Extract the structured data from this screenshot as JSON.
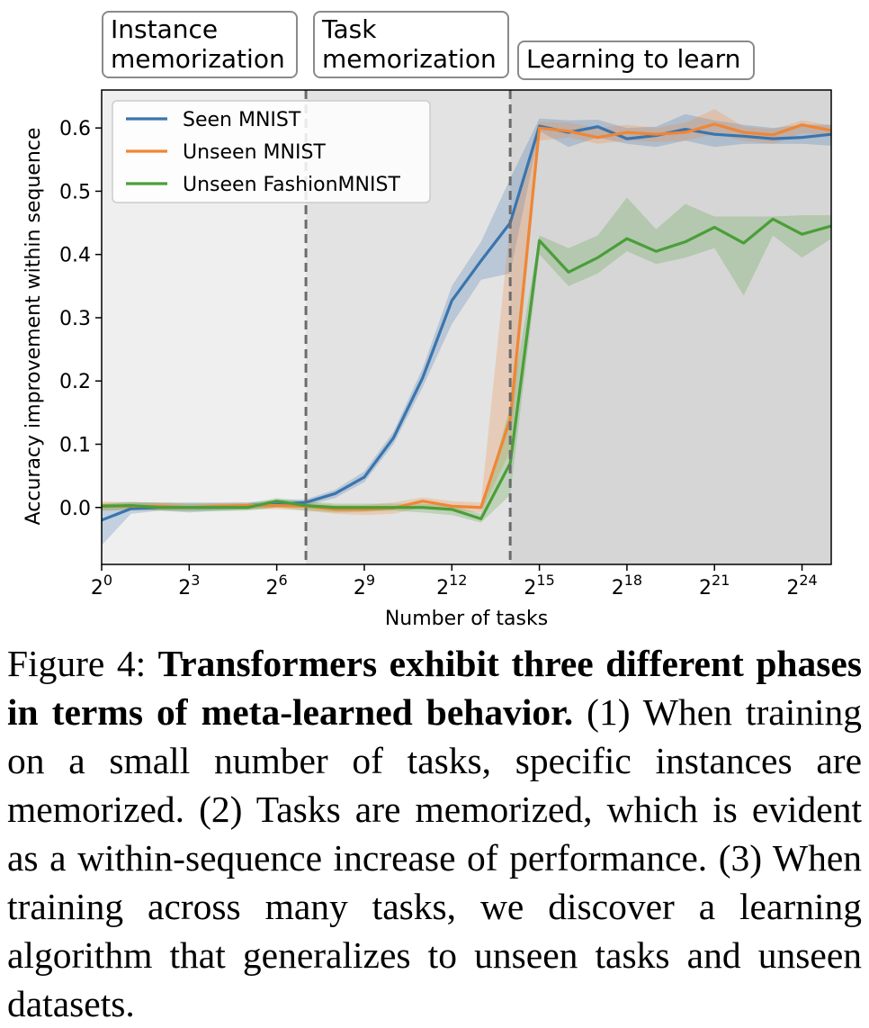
{
  "phases": {
    "phase1": "Instance\nmemorization",
    "phase2": "Task\nmemorization",
    "phase3": "Learning to learn"
  },
  "chart_data": {
    "type": "line",
    "title": "",
    "xlabel": "Number of tasks",
    "ylabel": "Accuracy improvement within sequence",
    "xscale": "log2",
    "xlim": [
      0,
      25
    ],
    "ylim": [
      -0.09,
      0.66
    ],
    "x_ticks": [
      {
        "exp": 0,
        "base": "2",
        "sup": "0"
      },
      {
        "exp": 3,
        "base": "2",
        "sup": "3"
      },
      {
        "exp": 6,
        "base": "2",
        "sup": "6"
      },
      {
        "exp": 9,
        "base": "2",
        "sup": "9"
      },
      {
        "exp": 12,
        "base": "2",
        "sup": "12"
      },
      {
        "exp": 15,
        "base": "2",
        "sup": "15"
      },
      {
        "exp": 18,
        "base": "2",
        "sup": "18"
      },
      {
        "exp": 21,
        "base": "2",
        "sup": "21"
      },
      {
        "exp": 24,
        "base": "2",
        "sup": "24"
      }
    ],
    "y_ticks": [
      "0.0",
      "0.1",
      "0.2",
      "0.3",
      "0.4",
      "0.5",
      "0.6"
    ],
    "phase_boundaries_log2": [
      7,
      14
    ],
    "legend_position": "top-left",
    "grid": false,
    "x_log2": [
      0,
      1,
      2,
      3,
      4,
      5,
      6,
      7,
      8,
      9,
      10,
      11,
      12,
      13,
      14,
      15,
      16,
      17,
      18,
      19,
      20,
      21,
      22,
      23,
      24,
      25
    ],
    "series": [
      {
        "name": "Seen MNIST",
        "color": "#3a75ae",
        "values": [
          -0.02,
          -0.002,
          0.0,
          0.0,
          0.0,
          0.003,
          0.005,
          0.008,
          0.022,
          0.048,
          0.11,
          0.205,
          0.327,
          0.39,
          0.45,
          0.603,
          0.593,
          0.602,
          0.583,
          0.588,
          0.598,
          0.59,
          0.587,
          0.583,
          0.585,
          0.59
        ],
        "lower": [
          -0.06,
          -0.01,
          -0.005,
          -0.008,
          -0.005,
          -0.003,
          0.0,
          0.003,
          0.015,
          0.04,
          0.1,
          0.19,
          0.29,
          0.36,
          0.37,
          0.595,
          0.57,
          0.585,
          0.575,
          0.57,
          0.58,
          0.57,
          0.575,
          0.575,
          0.575,
          0.572
        ],
        "upper": [
          0.005,
          0.008,
          0.008,
          0.008,
          0.008,
          0.008,
          0.012,
          0.013,
          0.028,
          0.057,
          0.12,
          0.22,
          0.35,
          0.42,
          0.52,
          0.615,
          0.612,
          0.613,
          0.6,
          0.602,
          0.622,
          0.612,
          0.605,
          0.6,
          0.605,
          0.605
        ]
      },
      {
        "name": "Unseen MNIST",
        "color": "#ef8636",
        "values": [
          0.003,
          0.002,
          0.002,
          0.0,
          0.002,
          0.003,
          0.003,
          0.002,
          -0.003,
          -0.003,
          -0.001,
          0.01,
          0.002,
          0.0,
          0.14,
          0.6,
          0.595,
          0.585,
          0.593,
          0.59,
          0.593,
          0.606,
          0.593,
          0.589,
          0.605,
          0.596
        ],
        "lower": [
          -0.005,
          -0.005,
          -0.005,
          -0.005,
          -0.003,
          -0.003,
          -0.003,
          -0.005,
          -0.01,
          -0.012,
          -0.01,
          0.0,
          -0.005,
          -0.008,
          0.09,
          0.58,
          0.585,
          0.575,
          0.58,
          0.578,
          0.58,
          0.59,
          0.58,
          0.575,
          0.592,
          0.588
        ],
        "upper": [
          0.01,
          0.008,
          0.008,
          0.006,
          0.007,
          0.008,
          0.008,
          0.008,
          0.004,
          0.004,
          0.008,
          0.016,
          0.01,
          0.008,
          0.45,
          0.61,
          0.608,
          0.6,
          0.605,
          0.6,
          0.608,
          0.63,
          0.602,
          0.598,
          0.612,
          0.604
        ]
      },
      {
        "name": "Unseen FashionMNIST",
        "color": "#4b9e39",
        "values": [
          0.002,
          0.003,
          0.0,
          0.0,
          0.0,
          0.0,
          0.01,
          0.003,
          0.0,
          0.0,
          0.0,
          0.0,
          -0.003,
          -0.018,
          0.07,
          0.422,
          0.372,
          0.395,
          0.425,
          0.405,
          0.42,
          0.443,
          0.418,
          0.456,
          0.432,
          0.445
        ],
        "lower": [
          -0.005,
          -0.003,
          -0.005,
          -0.006,
          -0.006,
          -0.005,
          0.0,
          -0.005,
          -0.008,
          -0.007,
          -0.005,
          -0.008,
          -0.012,
          -0.024,
          0.02,
          0.4,
          0.35,
          0.37,
          0.405,
          0.385,
          0.395,
          0.41,
          0.335,
          0.43,
          0.395,
          0.425
        ],
        "upper": [
          0.007,
          0.009,
          0.007,
          0.006,
          0.006,
          0.006,
          0.015,
          0.01,
          0.006,
          0.006,
          0.006,
          0.006,
          0.003,
          -0.01,
          0.16,
          0.43,
          0.41,
          0.43,
          0.49,
          0.44,
          0.48,
          0.46,
          0.46,
          0.46,
          0.462,
          0.462
        ]
      }
    ]
  },
  "caption": {
    "prefix": "Figure 4: ",
    "bold": "Transformers exhibit three different phases in terms of meta-learned behavior.",
    "body": " (1) When training on a small number of tasks, specific instances are memorized. (2) Tasks are memorized, which is evident as a within-sequence increase of performance. (3) When training across many tasks, we discover a learning algorithm that generalizes to unseen tasks and unseen datasets."
  }
}
